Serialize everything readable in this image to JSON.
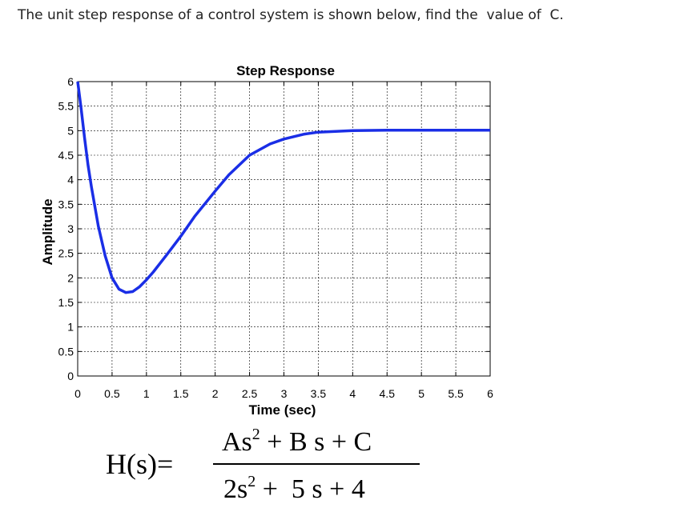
{
  "question": "The unit step response of a control system is shown below, find the  value of  C.",
  "formula": {
    "lhs": "H(s)=",
    "numerator": {
      "a": "As",
      "exp": "2",
      "rest": " + B s + C"
    },
    "denominator": {
      "a": "2s",
      "exp": "2",
      "rest": " +  5 s + 4"
    }
  },
  "chart_data": {
    "type": "line",
    "title": "Step Response",
    "xlabel": "Time (sec)",
    "ylabel": "Amplitude",
    "xlim": [
      0,
      6
    ],
    "ylim": [
      0,
      6
    ],
    "grid": true,
    "x_ticks": [
      0,
      0.5,
      1,
      1.5,
      2,
      2.5,
      3,
      3.5,
      4,
      4.5,
      5,
      5.5,
      6
    ],
    "x_tick_labels": [
      "0",
      "0.5",
      "1",
      "1.5",
      "2",
      "2.5",
      "3",
      "3.5",
      "4",
      "4.5",
      "5",
      "5.5",
      "6"
    ],
    "y_ticks": [
      0,
      0.5,
      1,
      1.5,
      2,
      2.5,
      3,
      3.5,
      4,
      4.5,
      5,
      5.5,
      6
    ],
    "y_tick_labels": [
      "0",
      "0.5",
      "1",
      "1.5",
      "2",
      "2.5",
      "3",
      "3.5",
      "4",
      "4.5",
      "5",
      "5.5",
      "6"
    ],
    "line_color": "#1a2ee6",
    "series": [
      {
        "x": [
          0,
          0.05,
          0.1,
          0.15,
          0.2,
          0.3,
          0.4,
          0.5,
          0.6,
          0.7,
          0.8,
          0.9,
          1.0,
          1.1,
          1.2,
          1.3,
          1.5,
          1.7,
          2.0,
          2.2,
          2.5,
          2.8,
          3.0,
          3.3,
          3.5,
          4.0,
          4.5,
          5.0,
          5.5,
          6.0
        ],
        "values": [
          6.0,
          5.45,
          4.85,
          4.3,
          3.85,
          3.05,
          2.45,
          2.0,
          1.77,
          1.7,
          1.72,
          1.82,
          1.96,
          2.12,
          2.3,
          2.48,
          2.85,
          3.25,
          3.77,
          4.1,
          4.5,
          4.73,
          4.83,
          4.93,
          4.97,
          5.0,
          5.01,
          5.01,
          5.01,
          5.01
        ]
      }
    ]
  }
}
